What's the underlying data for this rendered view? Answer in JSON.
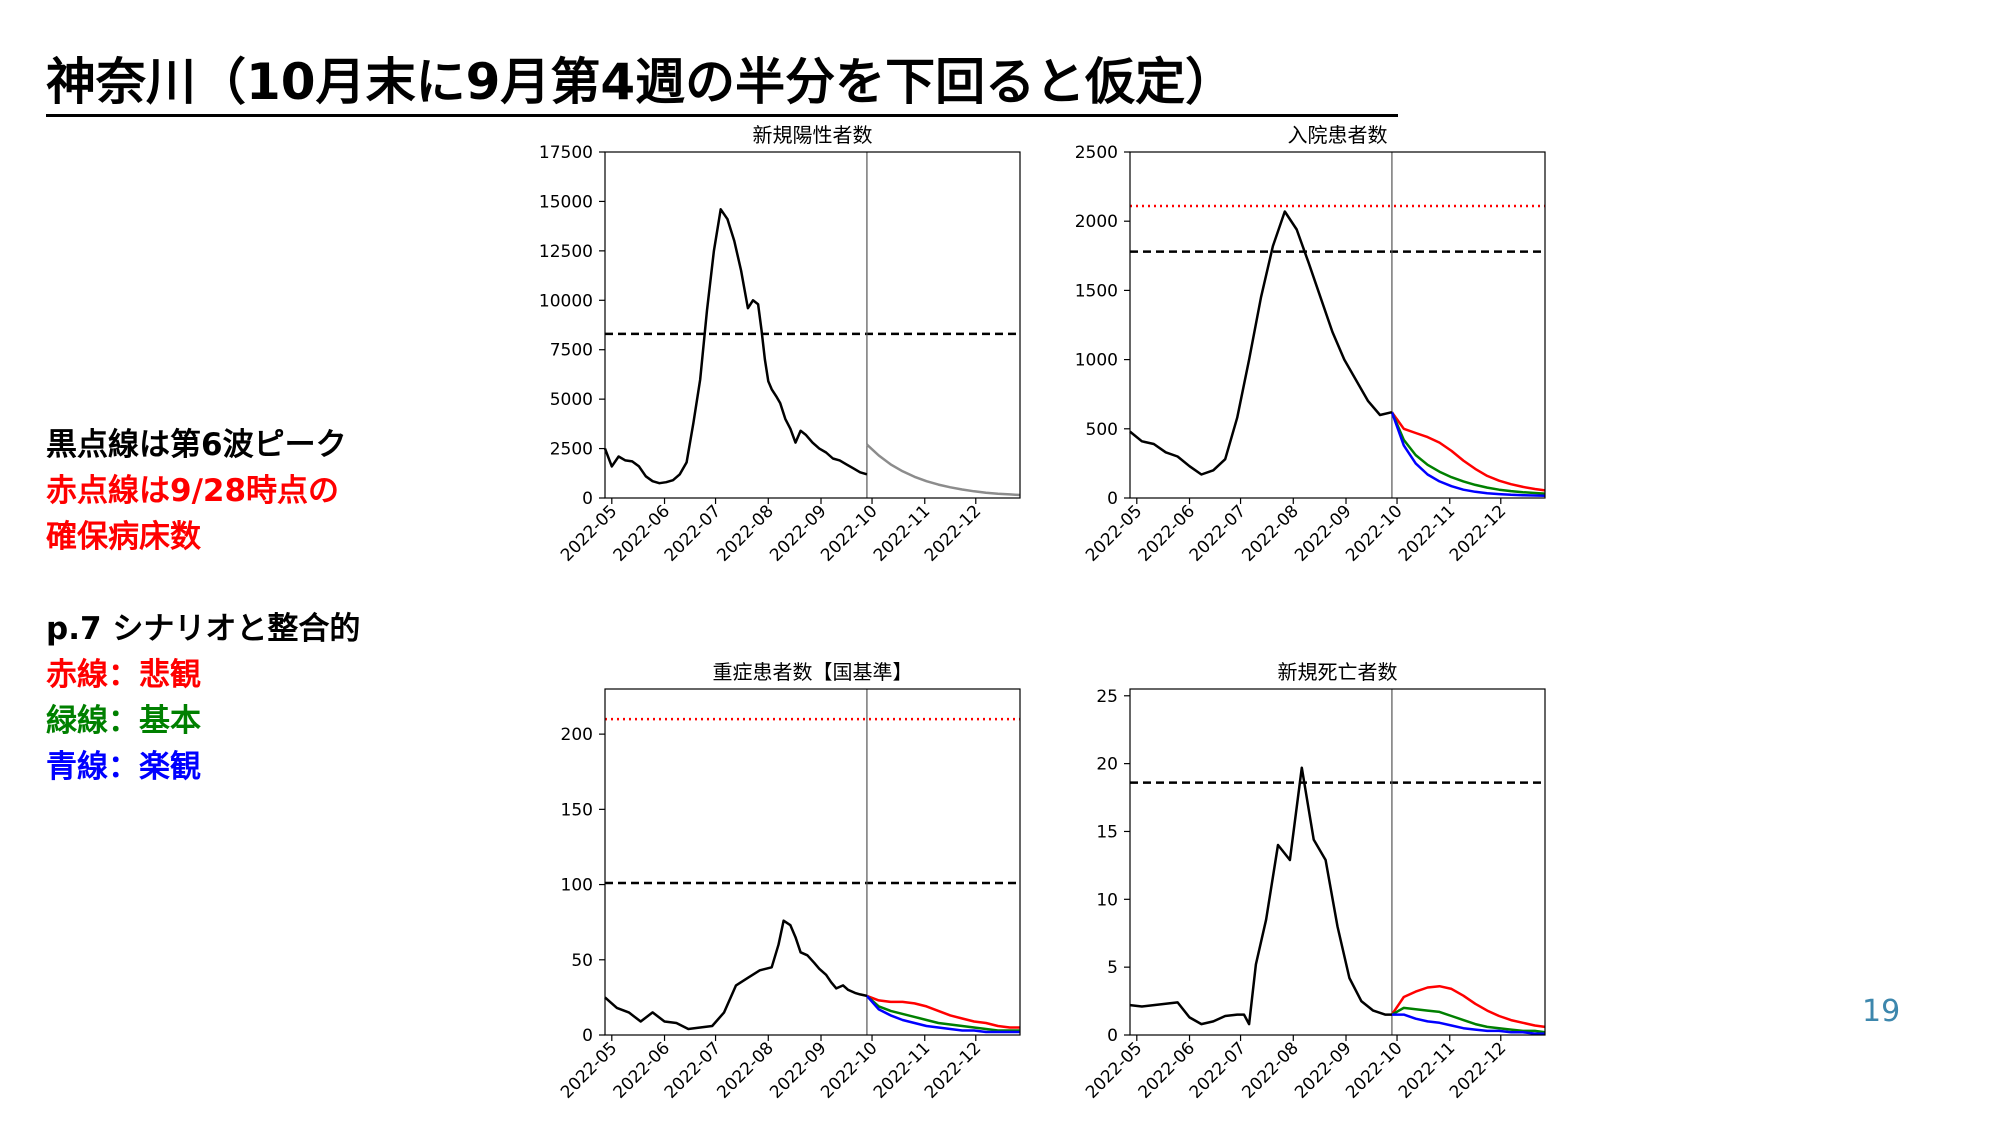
{
  "page": {
    "title": "神奈川（10月末に9月第4週の半分を下回ると仮定）",
    "notes": {
      "line1": "黒点線は第6波ピーク",
      "line2": "赤点線は9/28時点の",
      "line3": "確保病床数",
      "scenario_header": "p.7 シナリオと整合的",
      "red_line": "赤線：悲観",
      "green_line": "緑線：基本",
      "blue_line": "青線：楽観"
    },
    "page_number": "19"
  },
  "colors": {
    "actual": "#000000",
    "projection_single": "#8c8c8c",
    "pessimistic": "#ff0000",
    "base": "#008000",
    "optimistic": "#0000ff",
    "sixth_wave_peak_line": "#000000",
    "bed_capacity_line": "#ff0000",
    "note_black": "#000000",
    "note_red": "#ff0000",
    "note_green": "#008000",
    "note_blue": "#0000ff"
  },
  "chart_data": [
    {
      "type": "line",
      "title": "新規陽性者数",
      "x_axis": "date",
      "xlim": [
        "2022-04-27",
        "2022-12-27"
      ],
      "xticks": [
        "2022-05",
        "2022-06",
        "2022-07",
        "2022-08",
        "2022-09",
        "2022-10",
        "2022-11",
        "2022-12"
      ],
      "ylim": [
        0,
        17500
      ],
      "yticks": [
        0,
        2500,
        5000,
        7500,
        10000,
        12500,
        15000,
        17500
      ],
      "vline": "2022-09-28",
      "hlines": [
        {
          "value": 8300,
          "style": "dashed",
          "color": "#000000",
          "meaning": "第6波ピーク"
        }
      ],
      "series": [
        {
          "role": "actual",
          "style": "solid",
          "color": "#000000",
          "x": [
            "2022-04-27",
            "2022-05-01",
            "2022-05-05",
            "2022-05-09",
            "2022-05-13",
            "2022-05-17",
            "2022-05-21",
            "2022-05-25",
            "2022-05-29",
            "2022-06-02",
            "2022-06-06",
            "2022-06-10",
            "2022-06-14",
            "2022-06-18",
            "2022-06-22",
            "2022-06-26",
            "2022-06-30",
            "2022-07-04",
            "2022-07-08",
            "2022-07-12",
            "2022-07-16",
            "2022-07-20",
            "2022-07-23",
            "2022-07-26",
            "2022-07-28",
            "2022-07-30",
            "2022-08-01",
            "2022-08-03",
            "2022-08-06",
            "2022-08-08",
            "2022-08-11",
            "2022-08-14",
            "2022-08-17",
            "2022-08-20",
            "2022-08-23",
            "2022-08-27",
            "2022-08-31",
            "2022-09-04",
            "2022-09-08",
            "2022-09-12",
            "2022-09-16",
            "2022-09-20",
            "2022-09-24",
            "2022-09-28"
          ],
          "y": [
            2500,
            1600,
            2100,
            1900,
            1850,
            1600,
            1100,
            850,
            750,
            800,
            900,
            1200,
            1800,
            3800,
            6000,
            9500,
            12500,
            14600,
            14100,
            13000,
            11500,
            9600,
            10000,
            9800,
            8500,
            7000,
            5900,
            5500,
            5100,
            4800,
            4000,
            3500,
            2800,
            3400,
            3200,
            2800,
            2500,
            2300,
            2000,
            1900,
            1700,
            1500,
            1300,
            1200
          ]
        },
        {
          "role": "projection",
          "style": "solid",
          "color": "#8c8c8c",
          "x": [
            "2022-09-28",
            "2022-10-05",
            "2022-10-12",
            "2022-10-19",
            "2022-10-26",
            "2022-11-02",
            "2022-11-09",
            "2022-11-16",
            "2022-11-23",
            "2022-11-30",
            "2022-12-07",
            "2022-12-14",
            "2022-12-21",
            "2022-12-27"
          ],
          "y": [
            2700,
            2150,
            1700,
            1350,
            1070,
            850,
            680,
            540,
            430,
            340,
            270,
            220,
            180,
            150
          ]
        }
      ]
    },
    {
      "type": "line",
      "title": "入院患者数",
      "x_axis": "date",
      "xlim": [
        "2022-04-27",
        "2022-12-27"
      ],
      "xticks": [
        "2022-05",
        "2022-06",
        "2022-07",
        "2022-08",
        "2022-09",
        "2022-10",
        "2022-11",
        "2022-12"
      ],
      "ylim": [
        0,
        2500
      ],
      "yticks": [
        0,
        500,
        1000,
        1500,
        2000,
        2500
      ],
      "vline": "2022-09-28",
      "hlines": [
        {
          "value": 1780,
          "style": "dashed",
          "color": "#000000",
          "meaning": "第6波ピーク"
        },
        {
          "value": 2110,
          "style": "dotted",
          "color": "#ff0000",
          "meaning": "9/28時点の確保病床数"
        }
      ],
      "series": [
        {
          "role": "actual",
          "style": "solid",
          "color": "#000000",
          "x": [
            "2022-04-27",
            "2022-05-04",
            "2022-05-11",
            "2022-05-18",
            "2022-05-25",
            "2022-06-01",
            "2022-06-08",
            "2022-06-15",
            "2022-06-22",
            "2022-06-29",
            "2022-07-06",
            "2022-07-13",
            "2022-07-20",
            "2022-07-27",
            "2022-08-03",
            "2022-08-10",
            "2022-08-17",
            "2022-08-24",
            "2022-08-31",
            "2022-09-07",
            "2022-09-14",
            "2022-09-21",
            "2022-09-28"
          ],
          "y": [
            480,
            410,
            390,
            330,
            300,
            230,
            170,
            200,
            280,
            580,
            1000,
            1450,
            1820,
            2070,
            1940,
            1700,
            1450,
            1200,
            1000,
            850,
            700,
            600,
            620
          ]
        },
        {
          "role": "pessimistic",
          "style": "solid",
          "color": "#ff0000",
          "x": [
            "2022-09-28",
            "2022-10-05",
            "2022-10-12",
            "2022-10-19",
            "2022-10-26",
            "2022-11-02",
            "2022-11-09",
            "2022-11-16",
            "2022-11-23",
            "2022-11-30",
            "2022-12-07",
            "2022-12-14",
            "2022-12-21",
            "2022-12-27"
          ],
          "y": [
            620,
            500,
            470,
            440,
            400,
            340,
            270,
            210,
            160,
            125,
            100,
            80,
            65,
            55
          ]
        },
        {
          "role": "base",
          "style": "solid",
          "color": "#008000",
          "x": [
            "2022-09-28",
            "2022-10-05",
            "2022-10-12",
            "2022-10-19",
            "2022-10-26",
            "2022-11-02",
            "2022-11-09",
            "2022-11-16",
            "2022-11-23",
            "2022-11-30",
            "2022-12-07",
            "2022-12-14",
            "2022-12-21",
            "2022-12-27"
          ],
          "y": [
            620,
            420,
            310,
            240,
            190,
            150,
            120,
            95,
            75,
            60,
            50,
            42,
            36,
            32
          ]
        },
        {
          "role": "optimistic",
          "style": "solid",
          "color": "#0000ff",
          "x": [
            "2022-09-28",
            "2022-10-05",
            "2022-10-12",
            "2022-10-19",
            "2022-10-26",
            "2022-11-02",
            "2022-11-09",
            "2022-11-16",
            "2022-11-23",
            "2022-11-30",
            "2022-12-07",
            "2022-12-14",
            "2022-12-21",
            "2022-12-27"
          ],
          "y": [
            620,
            380,
            250,
            170,
            120,
            85,
            60,
            45,
            35,
            28,
            23,
            20,
            18,
            16
          ]
        }
      ]
    },
    {
      "type": "line",
      "title": "重症患者数【国基準】",
      "x_axis": "date",
      "xlim": [
        "2022-04-27",
        "2022-12-27"
      ],
      "xticks": [
        "2022-05",
        "2022-06",
        "2022-07",
        "2022-08",
        "2022-09",
        "2022-10",
        "2022-11",
        "2022-12"
      ],
      "ylim": [
        0,
        230
      ],
      "yticks": [
        0,
        50,
        100,
        150,
        200
      ],
      "vline": "2022-09-28",
      "hlines": [
        {
          "value": 101,
          "style": "dashed",
          "color": "#000000",
          "meaning": "第6波ピーク"
        },
        {
          "value": 210,
          "style": "dotted",
          "color": "#ff0000",
          "meaning": "9/28時点の確保病床数"
        }
      ],
      "series": [
        {
          "role": "actual",
          "style": "solid",
          "color": "#000000",
          "x": [
            "2022-04-27",
            "2022-05-04",
            "2022-05-11",
            "2022-05-18",
            "2022-05-25",
            "2022-06-01",
            "2022-06-08",
            "2022-06-15",
            "2022-06-22",
            "2022-06-29",
            "2022-07-06",
            "2022-07-13",
            "2022-07-20",
            "2022-07-27",
            "2022-08-03",
            "2022-08-07",
            "2022-08-10",
            "2022-08-14",
            "2022-08-17",
            "2022-08-20",
            "2022-08-24",
            "2022-08-28",
            "2022-08-31",
            "2022-09-04",
            "2022-09-07",
            "2022-09-10",
            "2022-09-14",
            "2022-09-17",
            "2022-09-21",
            "2022-09-24",
            "2022-09-28"
          ],
          "y": [
            25,
            18,
            15,
            9,
            15,
            9,
            8,
            4,
            5,
            6,
            15,
            33,
            38,
            43,
            45,
            60,
            76,
            73,
            65,
            55,
            53,
            48,
            44,
            40,
            35,
            31,
            33,
            30,
            28,
            27,
            26
          ]
        },
        {
          "role": "pessimistic",
          "style": "solid",
          "color": "#ff0000",
          "x": [
            "2022-09-28",
            "2022-10-05",
            "2022-10-12",
            "2022-10-19",
            "2022-10-26",
            "2022-11-02",
            "2022-11-09",
            "2022-11-16",
            "2022-11-23",
            "2022-11-30",
            "2022-12-07",
            "2022-12-14",
            "2022-12-21",
            "2022-12-27"
          ],
          "y": [
            26,
            23,
            22,
            22,
            21,
            19,
            16,
            13,
            11,
            9,
            8,
            6,
            5,
            5
          ]
        },
        {
          "role": "base",
          "style": "solid",
          "color": "#008000",
          "x": [
            "2022-09-28",
            "2022-10-05",
            "2022-10-12",
            "2022-10-19",
            "2022-10-26",
            "2022-11-02",
            "2022-11-09",
            "2022-11-16",
            "2022-11-23",
            "2022-11-30",
            "2022-12-07",
            "2022-12-14",
            "2022-12-21",
            "2022-12-27"
          ],
          "y": [
            26,
            19,
            16,
            14,
            12,
            10,
            8,
            7,
            6,
            5,
            4,
            3,
            3,
            3
          ]
        },
        {
          "role": "optimistic",
          "style": "solid",
          "color": "#0000ff",
          "x": [
            "2022-09-28",
            "2022-10-05",
            "2022-10-12",
            "2022-10-19",
            "2022-10-26",
            "2022-11-02",
            "2022-11-09",
            "2022-11-16",
            "2022-11-23",
            "2022-11-30",
            "2022-12-07",
            "2022-12-14",
            "2022-12-21",
            "2022-12-27"
          ],
          "y": [
            26,
            17,
            13,
            10,
            8,
            6,
            5,
            4,
            3,
            3,
            2,
            2,
            2,
            2
          ]
        }
      ]
    },
    {
      "type": "line",
      "title": "新規死亡者数",
      "x_axis": "date",
      "xlim": [
        "2022-04-27",
        "2022-12-27"
      ],
      "xticks": [
        "2022-05",
        "2022-06",
        "2022-07",
        "2022-08",
        "2022-09",
        "2022-10",
        "2022-11",
        "2022-12"
      ],
      "ylim": [
        0,
        25.5
      ],
      "yticks": [
        0,
        5,
        10,
        15,
        20,
        25
      ],
      "vline": "2022-09-28",
      "hlines": [
        {
          "value": 18.6,
          "style": "dashed",
          "color": "#000000",
          "meaning": "第6波ピーク"
        }
      ],
      "series": [
        {
          "role": "actual",
          "style": "solid",
          "color": "#000000",
          "x": [
            "2022-04-27",
            "2022-05-04",
            "2022-05-11",
            "2022-05-18",
            "2022-05-25",
            "2022-06-01",
            "2022-06-08",
            "2022-06-15",
            "2022-06-22",
            "2022-06-29",
            "2022-07-03",
            "2022-07-06",
            "2022-07-10",
            "2022-07-16",
            "2022-07-23",
            "2022-07-30",
            "2022-08-06",
            "2022-08-13",
            "2022-08-20",
            "2022-08-27",
            "2022-09-03",
            "2022-09-10",
            "2022-09-17",
            "2022-09-24",
            "2022-09-28"
          ],
          "y": [
            2.2,
            2.1,
            2.2,
            2.3,
            2.4,
            1.3,
            0.8,
            1.0,
            1.4,
            1.5,
            1.5,
            0.8,
            5.2,
            8.5,
            14.0,
            12.9,
            19.7,
            14.4,
            12.9,
            8.0,
            4.2,
            2.5,
            1.8,
            1.5,
            1.5
          ]
        },
        {
          "role": "pessimistic",
          "style": "solid",
          "color": "#ff0000",
          "x": [
            "2022-09-28",
            "2022-10-05",
            "2022-10-12",
            "2022-10-19",
            "2022-10-26",
            "2022-11-02",
            "2022-11-09",
            "2022-11-16",
            "2022-11-23",
            "2022-11-30",
            "2022-12-07",
            "2022-12-14",
            "2022-12-21",
            "2022-12-27"
          ],
          "y": [
            1.5,
            2.8,
            3.2,
            3.5,
            3.6,
            3.4,
            2.9,
            2.3,
            1.8,
            1.4,
            1.1,
            0.9,
            0.7,
            0.6
          ]
        },
        {
          "role": "base",
          "style": "solid",
          "color": "#008000",
          "x": [
            "2022-09-28",
            "2022-10-05",
            "2022-10-12",
            "2022-10-19",
            "2022-10-26",
            "2022-11-02",
            "2022-11-09",
            "2022-11-16",
            "2022-11-23",
            "2022-11-30",
            "2022-12-07",
            "2022-12-14",
            "2022-12-21",
            "2022-12-27"
          ],
          "y": [
            1.5,
            2.0,
            1.9,
            1.8,
            1.7,
            1.4,
            1.1,
            0.8,
            0.6,
            0.5,
            0.4,
            0.3,
            0.3,
            0.2
          ]
        },
        {
          "role": "optimistic",
          "style": "solid",
          "color": "#0000ff",
          "x": [
            "2022-09-28",
            "2022-10-05",
            "2022-10-12",
            "2022-10-19",
            "2022-10-26",
            "2022-11-02",
            "2022-11-09",
            "2022-11-16",
            "2022-11-23",
            "2022-11-30",
            "2022-12-07",
            "2022-12-14",
            "2022-12-21",
            "2022-12-27"
          ],
          "y": [
            1.5,
            1.5,
            1.2,
            1.0,
            0.9,
            0.7,
            0.5,
            0.4,
            0.3,
            0.3,
            0.2,
            0.2,
            0.1,
            0.1
          ]
        }
      ]
    }
  ]
}
